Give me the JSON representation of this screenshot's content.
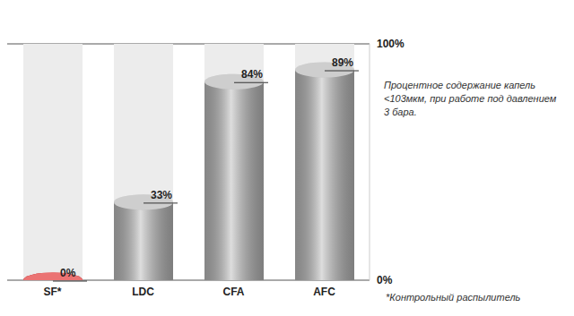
{
  "chart_data": {
    "type": "bar",
    "categories": [
      "SF*",
      "LDC",
      "CFA",
      "AFC"
    ],
    "values": [
      0,
      33,
      84,
      89
    ],
    "value_labels": [
      "0%",
      "33%",
      "84%",
      "89%"
    ],
    "colors": [
      "#e02828",
      "#b4b4b4",
      "#b4b4b4",
      "#b4b4b4"
    ],
    "ylim": [
      0,
      100
    ],
    "yticks": [
      {
        "value": 0,
        "label": "0%"
      },
      {
        "value": 100,
        "label": "100%"
      }
    ],
    "grid": true,
    "data_labels": true,
    "annotations": [
      "Процентное содержание капель <103мкм, при работе под давлением 3 бара.",
      "*Контрольный распылитель"
    ]
  }
}
